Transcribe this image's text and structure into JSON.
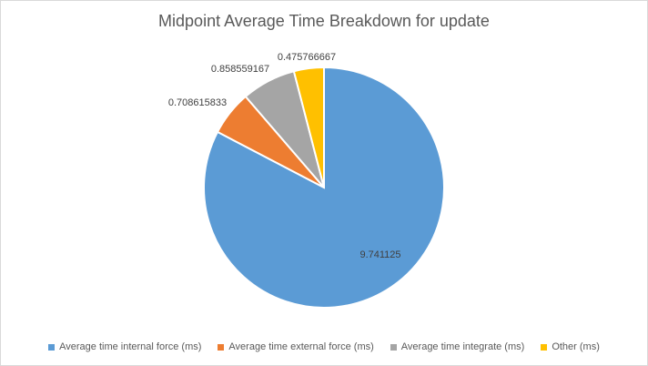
{
  "chart_data": {
    "type": "pie",
    "title": "Midpoint Average Time Breakdown for update",
    "categories": [
      "Average time internal force (ms)",
      "Average time external force (ms)",
      "Average time integrate (ms)",
      "Other (ms)"
    ],
    "values": [
      9.741125,
      0.708615833,
      0.858559167,
      0.475766667
    ],
    "labels": [
      "9.741125",
      "0.708615833",
      "0.858559167",
      "0.475766667"
    ],
    "colors": [
      "#5b9bd5",
      "#ed7d31",
      "#a5a5a5",
      "#ffc000"
    ],
    "legend_position": "bottom"
  }
}
